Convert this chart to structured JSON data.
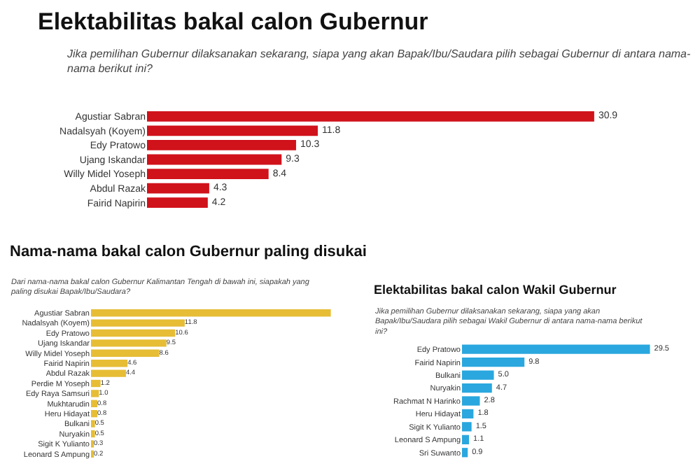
{
  "chart_data": [
    {
      "type": "bar",
      "orientation": "horizontal",
      "title": "Elektabilitas bakal calon Gubernur",
      "subtitle": "Jika pemilihan Gubernur dilaksanakan sekarang, siapa yang akan Bapak/Ibu/Saudara pilih sebagai Gubernur di antara nama-nama berikut ini?",
      "categories": [
        "Agustiar Sabran",
        "Nadalsyah (Koyem)",
        "Edy Pratowo",
        "Ujang Iskandar",
        "Willy Midel Yoseph",
        "Abdul Razak",
        "Fairid Napirin"
      ],
      "values": [
        30.9,
        11.8,
        10.3,
        9.3,
        8.4,
        4.3,
        4.2
      ],
      "color": "#d0121b",
      "data_labels": true
    },
    {
      "type": "bar",
      "orientation": "horizontal",
      "title": "Nama-nama bakal calon Gubernur paling disukai",
      "subtitle": "Dari nama-nama bakal calon Gubernur Kalimantan Tengah di bawah ini, siapakah yang paling disukai Bapak/Ibu/Saudara?",
      "categories": [
        "Agustiar Sabran",
        "Nadalsyah (Koyem)",
        "Edy Pratowo",
        "Ujang Iskandar",
        "Willy Midel Yoseph",
        "Fairid Napirin",
        "Abdul Razak",
        "Perdie M Yoseph",
        "Edy Raya Samsuri",
        "Mukhtarudin",
        "Heru Hidayat",
        "Bulkani",
        "Nuryakin",
        "Sigit K Yulianto",
        "Leonard S Ampung"
      ],
      "values": [
        30.2,
        11.8,
        10.6,
        9.5,
        8.6,
        4.6,
        4.4,
        1.2,
        1.0,
        0.8,
        0.8,
        0.5,
        0.5,
        0.3,
        0.2
      ],
      "color": "#e6bd35",
      "value_labels": [
        null,
        "11.8",
        "10.6",
        "9.5",
        "8.6",
        "4.6",
        "4.4",
        "1.2",
        "1.0",
        "0.8",
        "0.8",
        "0.5",
        "0.5",
        "0.3",
        "0.2"
      ]
    },
    {
      "type": "bar",
      "orientation": "horizontal",
      "title": "Elektabilitas bakal calon Wakil Gubernur",
      "subtitle": "Jika pemilihan Gubernur dilaksanakan sekarang, siapa yang akan Bapak/Ibu/Saudara pilih sebagai Wakil Gubernur di antara nama-nama berikut ini?",
      "categories": [
        "Edy Pratowo",
        "Fairid Napirin",
        "Bulkani",
        "Nuryakin",
        "Rachmat N Harinko",
        "Heru Hidayat",
        "Sigit K Yulianto",
        "Leonard S Ampung",
        "Sri Suwanto"
      ],
      "values": [
        29.5,
        9.8,
        5.0,
        4.7,
        2.8,
        1.8,
        1.5,
        1.1,
        0.9
      ],
      "color": "#2aa7de",
      "value_labels": [
        "29.5",
        "9.8",
        "5.0",
        "4.7",
        "2.8",
        "1.8",
        "1.5",
        "1.1",
        "0.9"
      ]
    }
  ]
}
